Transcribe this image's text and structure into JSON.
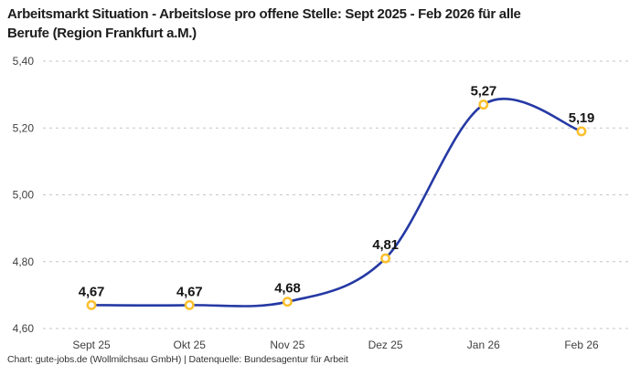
{
  "title": {
    "line1": "Arbeitsmarkt Situation - Arbeitslose pro offene Stelle: Sept 2025 - Feb 2026 für alle",
    "line2": "Berufe (Region Frankfurt a.M.)"
  },
  "footer": {
    "text": "Chart: gute-jobs.de (Wollmilchsau GmbH) | Datenquelle: Bundesagentur für Arbeit"
  },
  "chart_data": {
    "type": "line",
    "title": "Arbeitsmarkt Situation - Arbeitslose pro offene Stelle: Sept 2025 - Feb 2026 für alle Berufe (Region Frankfurt a.M.)",
    "categories": [
      "Sept 25",
      "Okt 25",
      "Nov 25",
      "Dez 25",
      "Jan 26",
      "Feb 26"
    ],
    "values": [
      4.67,
      4.67,
      4.68,
      4.81,
      5.27,
      5.19
    ],
    "value_labels": [
      "4,67",
      "4,67",
      "4,68",
      "4,81",
      "5,27",
      "5,19"
    ],
    "yticks": [
      4.6,
      4.8,
      5.0,
      5.2,
      5.4
    ],
    "ytick_labels": [
      "4,60",
      "4,80",
      "5,00",
      "5,20",
      "5,40"
    ],
    "ylim": [
      4.6,
      5.4
    ],
    "xlabel": "",
    "ylabel": "",
    "legend": "none",
    "grid": "horizontal-dashed",
    "colors": {
      "line": "#2539a4",
      "marker_ring": "#fbc02d",
      "marker_fill": "#ffffff",
      "grid": "#c6c6c6",
      "axis_text": "#3f3f3f",
      "data_label": "#161616"
    }
  }
}
